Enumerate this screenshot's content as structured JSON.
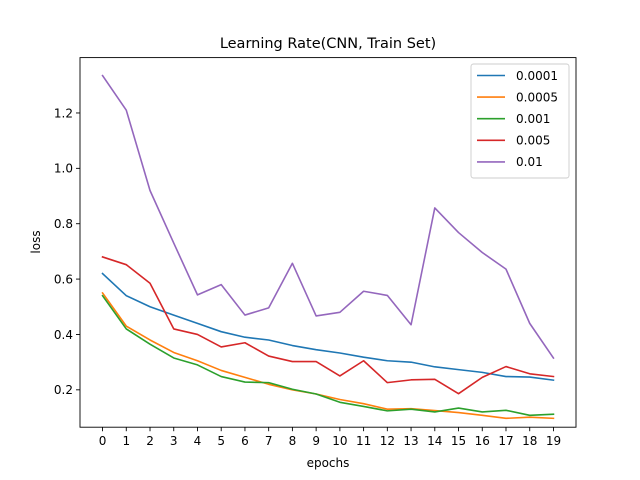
{
  "chart_data": {
    "type": "line",
    "title": "Learning Rate(CNN, Train Set)",
    "xlabel": "epochs",
    "ylabel": "loss",
    "x": [
      0,
      1,
      2,
      3,
      4,
      5,
      6,
      7,
      8,
      9,
      10,
      11,
      12,
      13,
      14,
      15,
      16,
      17,
      18,
      19
    ],
    "xlim": [
      -0.95,
      19.95
    ],
    "ylim": [
      0.065,
      1.4
    ],
    "yticks": [
      0.2,
      0.4,
      0.6,
      0.8,
      1.0,
      1.2
    ],
    "ytick_labels": [
      "0.2",
      "0.4",
      "0.6",
      "0.8",
      "1.0",
      "1.2"
    ],
    "grid": false,
    "legend_position": "top-right",
    "series": [
      {
        "name": "0.0001",
        "color": "#1f77b4",
        "values": [
          0.62,
          0.54,
          0.5,
          0.47,
          0.44,
          0.41,
          0.39,
          0.38,
          0.36,
          0.345,
          0.333,
          0.318,
          0.305,
          0.3,
          0.283,
          0.273,
          0.263,
          0.248,
          0.246,
          0.235
        ]
      },
      {
        "name": "0.0005",
        "color": "#ff7f0e",
        "values": [
          0.55,
          0.43,
          0.38,
          0.335,
          0.305,
          0.27,
          0.245,
          0.22,
          0.2,
          0.185,
          0.165,
          0.15,
          0.13,
          0.132,
          0.125,
          0.118,
          0.108,
          0.097,
          0.101,
          0.097
        ]
      },
      {
        "name": "0.001",
        "color": "#2ca02c",
        "values": [
          0.54,
          0.42,
          0.365,
          0.315,
          0.29,
          0.248,
          0.228,
          0.226,
          0.202,
          0.185,
          0.155,
          0.14,
          0.124,
          0.13,
          0.12,
          0.134,
          0.12,
          0.126,
          0.108,
          0.112
        ]
      },
      {
        "name": "0.005",
        "color": "#d62728",
        "values": [
          0.68,
          0.652,
          0.585,
          0.42,
          0.4,
          0.355,
          0.37,
          0.322,
          0.302,
          0.302,
          0.25,
          0.305,
          0.226,
          0.236,
          0.238,
          0.186,
          0.245,
          0.284,
          0.258,
          0.248
        ]
      },
      {
        "name": "0.01",
        "color": "#9467bd",
        "values": [
          1.335,
          1.21,
          0.92,
          0.73,
          0.543,
          0.58,
          0.47,
          0.496,
          0.657,
          0.467,
          0.48,
          0.556,
          0.541,
          0.435,
          0.857,
          0.768,
          0.696,
          0.636,
          0.44,
          0.315
        ]
      }
    ]
  }
}
